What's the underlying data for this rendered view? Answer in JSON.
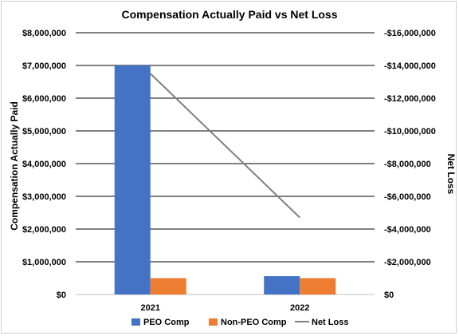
{
  "chart_data": {
    "type": "bar",
    "title": "Compensation Actually Paid vs Net Loss",
    "categories": [
      "2021",
      "2022"
    ],
    "series": [
      {
        "name": "PEO Comp",
        "kind": "bar",
        "axis": "left",
        "color": "#4472C4",
        "values": [
          7000000,
          560000
        ]
      },
      {
        "name": "Non-PEO Comp",
        "kind": "bar",
        "axis": "left",
        "color": "#ED7D31",
        "values": [
          500000,
          500000
        ]
      },
      {
        "name": "Net Loss",
        "kind": "line",
        "axis": "right",
        "color": "#7F7F7F",
        "values": [
          -13500000,
          -4700000
        ]
      }
    ],
    "ylabel": "Compensation Actually Paid",
    "y2label": "Net Loss",
    "ylim": [
      0,
      8000000
    ],
    "y2lim": [
      0,
      -16000000
    ],
    "yticks": [
      "$0",
      "$1,000,000",
      "$2,000,000",
      "$3,000,000",
      "$4,000,000",
      "$5,000,000",
      "$6,000,000",
      "$7,000,000",
      "$8,000,000"
    ],
    "y2ticks": [
      "$0",
      "-$2,000,000",
      "-$4,000,000",
      "-$6,000,000",
      "-$8,000,000",
      "-$10,000,000",
      "-$12,000,000",
      "-$14,000,000",
      "-$16,000,000"
    ],
    "grid": true,
    "legend": "bottom"
  }
}
